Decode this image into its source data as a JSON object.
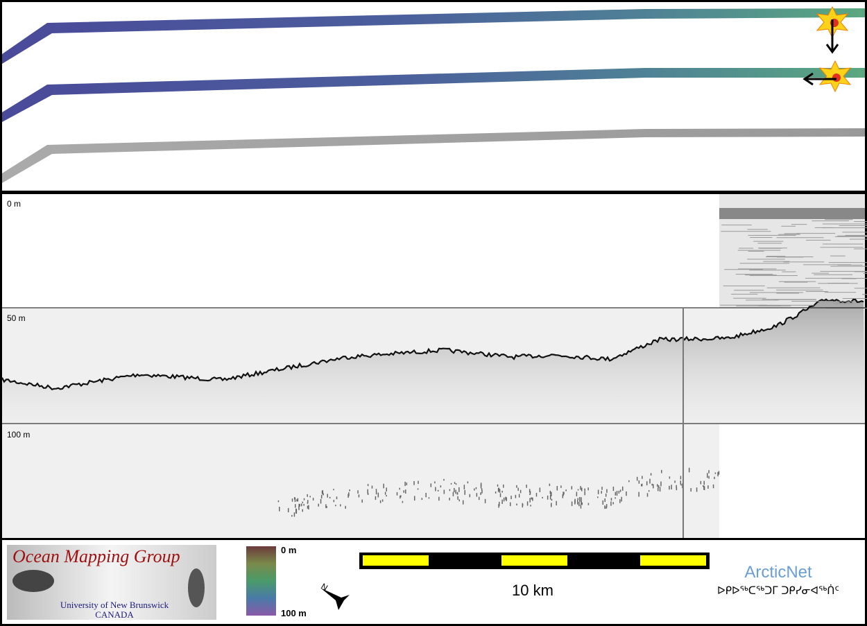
{
  "panels": {
    "depth_labels": [
      "0 m",
      "50 m",
      "100 m"
    ]
  },
  "legend": {
    "logo": {
      "title": "Ocean Mapping Group",
      "university": "University of New Brunswick",
      "country": "CANADA"
    },
    "colorbar": {
      "top": "0 m",
      "bottom": "100 m"
    },
    "compass": "N",
    "scale_bar": "10 km",
    "partner": {
      "name": "ArcticNet",
      "subtitle": "ᐅᑭᐅᖅᑕᖅᑐᒥ ᑐᑭᓯᓂᐊᖅᑏᑦ"
    }
  }
}
